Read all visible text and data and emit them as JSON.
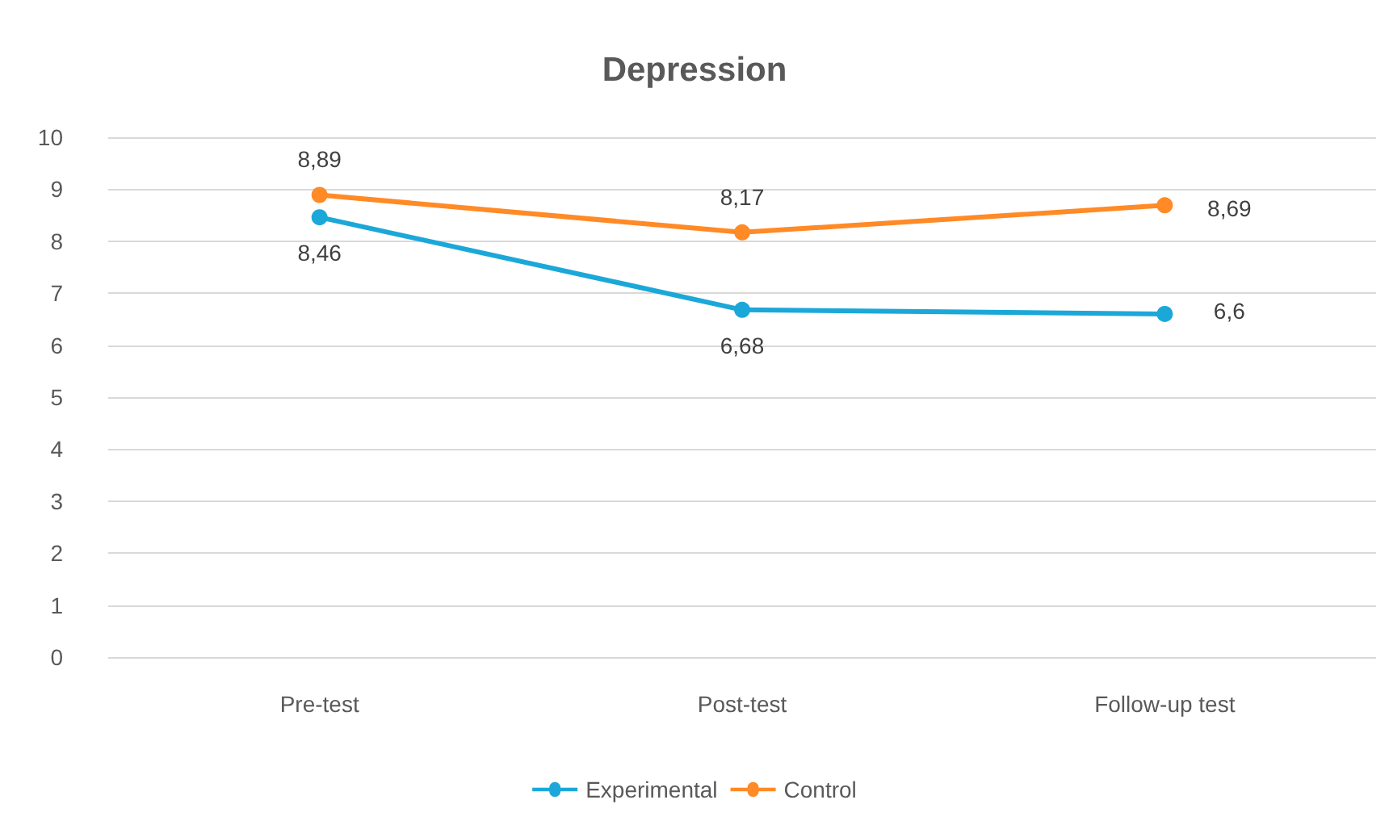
{
  "chart_data": {
    "type": "line",
    "title": "Depression",
    "categories": [
      "Pre-test",
      "Post-test",
      "Follow-up test"
    ],
    "series": [
      {
        "name": "Experimental",
        "color": "#1ba8d8",
        "values": [
          8.46,
          6.68,
          6.6
        ],
        "value_labels": [
          "8,46",
          "6,68",
          "6,6"
        ]
      },
      {
        "name": "Control",
        "color": "#ff8a26",
        "values": [
          8.89,
          8.17,
          8.69
        ],
        "value_labels": [
          "8,89",
          "8,17",
          "8,69"
        ]
      }
    ],
    "ylim": [
      0,
      10
    ],
    "yticks": [
      0,
      1,
      2,
      3,
      4,
      5,
      6,
      7,
      8,
      9,
      10
    ],
    "grid": "y",
    "legend": "bottom",
    "marker": "circle",
    "line_style": "solid"
  }
}
